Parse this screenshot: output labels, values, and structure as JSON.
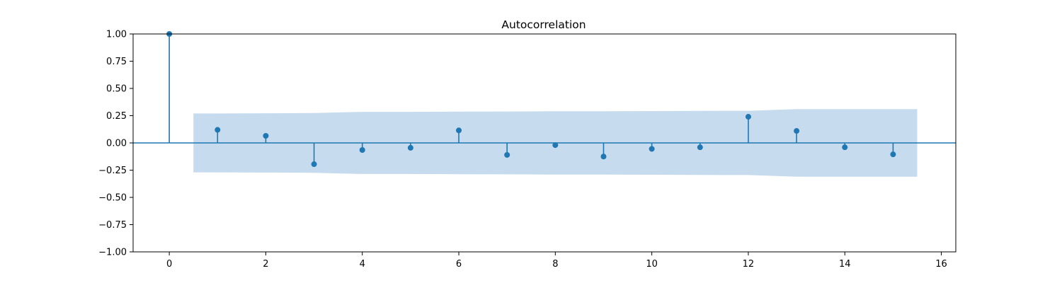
{
  "chart_data": {
    "type": "stem",
    "title": "Autocorrelation",
    "xlabel": "",
    "ylabel": "",
    "x": [
      0,
      1,
      2,
      3,
      4,
      5,
      6,
      7,
      8,
      9,
      10,
      11,
      12,
      13,
      14,
      15
    ],
    "values": [
      1.0,
      0.12,
      0.065,
      -0.195,
      -0.065,
      -0.045,
      0.115,
      -0.11,
      -0.02,
      -0.125,
      -0.055,
      -0.04,
      0.24,
      0.11,
      -0.04,
      -0.105
    ],
    "confidence_band": {
      "x": [
        0.5,
        1,
        2,
        3,
        4,
        5,
        6,
        7,
        8,
        9,
        10,
        11,
        12,
        13,
        14,
        15,
        15.5
      ],
      "half_width": [
        0.27,
        0.27,
        0.272,
        0.274,
        0.285,
        0.285,
        0.287,
        0.288,
        0.29,
        0.29,
        0.292,
        0.294,
        0.295,
        0.31,
        0.31,
        0.31,
        0.31
      ]
    },
    "xlim": [
      -0.75,
      16.3
    ],
    "ylim": [
      -1.0,
      1.0
    ],
    "xticks": [
      0,
      2,
      4,
      6,
      8,
      10,
      12,
      14,
      16
    ],
    "yticks": [
      -1.0,
      -0.75,
      -0.5,
      -0.25,
      0.0,
      0.25,
      0.5,
      0.75,
      1.0
    ],
    "ytick_labels": [
      "−1.00",
      "−0.75",
      "−0.50",
      "−0.25",
      "0.00",
      "0.25",
      "0.50",
      "0.75",
      "1.00"
    ],
    "xtick_labels": [
      "0",
      "2",
      "4",
      "6",
      "8",
      "10",
      "12",
      "14",
      "16"
    ],
    "grid": false,
    "colors": {
      "stem": "#1f77b4",
      "band": "#c6dbed",
      "axes": "#000000"
    }
  }
}
